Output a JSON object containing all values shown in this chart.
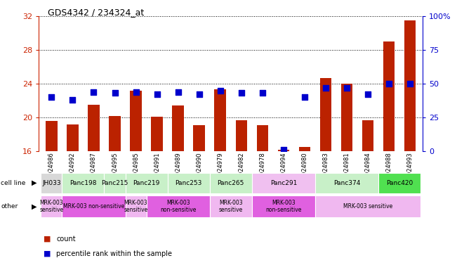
{
  "title": "GDS4342 / 234324_at",
  "samples": [
    "GSM924986",
    "GSM924992",
    "GSM924987",
    "GSM924995",
    "GSM924985",
    "GSM924991",
    "GSM924989",
    "GSM924990",
    "GSM924979",
    "GSM924982",
    "GSM924978",
    "GSM924994",
    "GSM924980",
    "GSM924983",
    "GSM924981",
    "GSM924984",
    "GSM924988",
    "GSM924993"
  ],
  "counts": [
    19.6,
    19.2,
    21.5,
    20.2,
    23.2,
    20.1,
    21.4,
    19.1,
    23.3,
    19.7,
    19.1,
    16.2,
    16.5,
    24.7,
    24.0,
    19.7,
    29.0,
    31.5
  ],
  "percentile_ranks": [
    40,
    38,
    44,
    43,
    44,
    42,
    44,
    42,
    45,
    43,
    43,
    1,
    40,
    47,
    47,
    42,
    50,
    50
  ],
  "ylim_left": [
    16,
    32
  ],
  "ylim_right": [
    0,
    100
  ],
  "yticks_left": [
    16,
    20,
    24,
    28,
    32
  ],
  "yticks_right": [
    0,
    25,
    50,
    75,
    100
  ],
  "cell_lines": [
    {
      "label": "JH033",
      "start": 0,
      "end": 1,
      "color": "#d8d8d8"
    },
    {
      "label": "Panc198",
      "start": 1,
      "end": 3,
      "color": "#c8f0c8"
    },
    {
      "label": "Panc215",
      "start": 3,
      "end": 4,
      "color": "#c8f0c8"
    },
    {
      "label": "Panc219",
      "start": 4,
      "end": 6,
      "color": "#c8f0c8"
    },
    {
      "label": "Panc253",
      "start": 6,
      "end": 8,
      "color": "#c8f0c8"
    },
    {
      "label": "Panc265",
      "start": 8,
      "end": 10,
      "color": "#c8f0c8"
    },
    {
      "label": "Panc291",
      "start": 10,
      "end": 13,
      "color": "#f0c0f0"
    },
    {
      "label": "Panc374",
      "start": 13,
      "end": 16,
      "color": "#c8f0c8"
    },
    {
      "label": "Panc420",
      "start": 16,
      "end": 18,
      "color": "#50e050"
    }
  ],
  "other_regions": [
    {
      "label": "MRK-003\nsensitive",
      "start": 0,
      "end": 1,
      "color": "#f0b8f0"
    },
    {
      "label": "MRK-003 non-sensitive",
      "start": 1,
      "end": 4,
      "color": "#e060e0"
    },
    {
      "label": "MRK-003\nsensitive",
      "start": 4,
      "end": 5,
      "color": "#f0b8f0"
    },
    {
      "label": "MRK-003\nnon-sensitive",
      "start": 5,
      "end": 8,
      "color": "#e060e0"
    },
    {
      "label": "MRK-003\nsensitive",
      "start": 8,
      "end": 10,
      "color": "#f0b8f0"
    },
    {
      "label": "MRK-003\nnon-sensitive",
      "start": 10,
      "end": 13,
      "color": "#e060e0"
    },
    {
      "label": "MRK-003 sensitive",
      "start": 13,
      "end": 18,
      "color": "#f0b8f0"
    }
  ],
  "bar_color": "#bb2200",
  "dot_color": "#0000cc",
  "left_axis_color": "#cc2200",
  "right_axis_color": "#0000cc",
  "bar_width": 0.55,
  "dot_size": 28,
  "background_color": "#ffffff"
}
